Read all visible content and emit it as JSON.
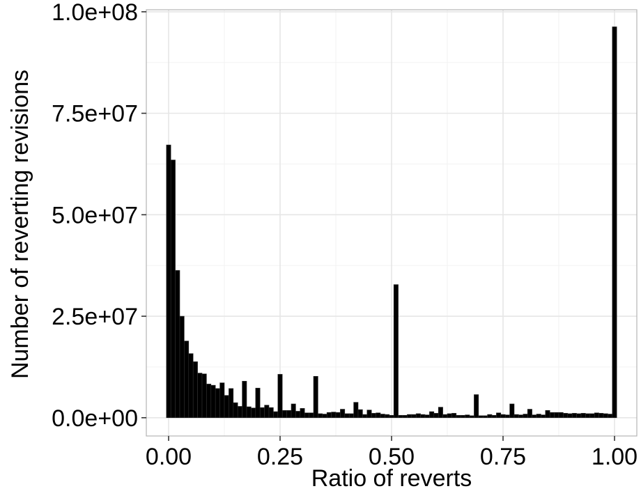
{
  "chart_data": {
    "type": "bar",
    "xlabel": "Ratio of reverts",
    "ylabel": "Number of reverting revisions",
    "xlim": [
      -0.05,
      1.05
    ],
    "ylim": [
      -4500000,
      100500000
    ],
    "x_ticks": [
      {
        "value": 0.0,
        "label": "0.00"
      },
      {
        "value": 0.25,
        "label": "0.25"
      },
      {
        "value": 0.5,
        "label": "0.50"
      },
      {
        "value": 0.75,
        "label": "0.75"
      },
      {
        "value": 1.0,
        "label": "1.00"
      }
    ],
    "y_ticks": [
      {
        "value": 0,
        "label": "0.0e+00"
      },
      {
        "value": 25000000,
        "label": "2.5e+07"
      },
      {
        "value": 50000000,
        "label": "5.0e+07"
      },
      {
        "value": 75000000,
        "label": "7.5e+07"
      },
      {
        "value": 100000000,
        "label": "1.0e+08"
      }
    ],
    "bin_width": 0.01,
    "grid": true,
    "bar_color": "#000000",
    "bins": [
      0.0,
      0.01,
      0.02,
      0.03,
      0.04,
      0.05,
      0.06,
      0.07,
      0.08,
      0.09,
      0.1,
      0.11,
      0.12,
      0.13,
      0.14,
      0.15,
      0.16,
      0.17,
      0.18,
      0.19,
      0.2,
      0.21,
      0.22,
      0.23,
      0.24,
      0.25,
      0.26,
      0.27,
      0.28,
      0.29,
      0.3,
      0.31,
      0.32,
      0.33,
      0.34,
      0.35,
      0.36,
      0.37,
      0.38,
      0.39,
      0.4,
      0.41,
      0.42,
      0.43,
      0.44,
      0.45,
      0.46,
      0.47,
      0.48,
      0.49,
      0.5,
      0.51,
      0.52,
      0.53,
      0.54,
      0.55,
      0.56,
      0.57,
      0.58,
      0.59,
      0.6,
      0.61,
      0.62,
      0.63,
      0.64,
      0.65,
      0.66,
      0.67,
      0.68,
      0.69,
      0.7,
      0.71,
      0.72,
      0.73,
      0.74,
      0.75,
      0.76,
      0.77,
      0.78,
      0.79,
      0.8,
      0.81,
      0.82,
      0.83,
      0.84,
      0.85,
      0.86,
      0.87,
      0.88,
      0.89,
      0.9,
      0.91,
      0.92,
      0.93,
      0.94,
      0.95,
      0.96,
      0.97,
      0.98,
      0.99,
      1.0
    ],
    "values": [
      67200000,
      63500000,
      36300000,
      25000000,
      18900000,
      15800000,
      13800000,
      11000000,
      10800000,
      8300000,
      8000000,
      7200000,
      8600000,
      5500000,
      7200000,
      3700000,
      2800000,
      9000000,
      2700000,
      2400000,
      7300000,
      2500000,
      3100000,
      2500000,
      1500000,
      10700000,
      1800000,
      1800000,
      3400000,
      1600000,
      2300000,
      1200000,
      1200000,
      10200000,
      1000000,
      900000,
      1300000,
      1400000,
      1300000,
      2100000,
      1000000,
      1000000,
      3800000,
      2000000,
      800000,
      1900000,
      1100000,
      1200000,
      900000,
      800000,
      600000,
      32800000,
      600000,
      600000,
      800000,
      800000,
      1000000,
      800000,
      700000,
      1500000,
      1100000,
      2600000,
      800000,
      1000000,
      1100000,
      600000,
      600000,
      700000,
      500000,
      5700000,
      500000,
      500000,
      800000,
      600000,
      1200000,
      800000,
      700000,
      3400000,
      800000,
      700000,
      900000,
      2100000,
      700000,
      900000,
      700000,
      1800000,
      1300000,
      1300000,
      1300000,
      1100000,
      1000000,
      1100000,
      1000000,
      1100000,
      1000000,
      1000000,
      1200000,
      1100000,
      1000000,
      900000,
      96300000
    ]
  }
}
